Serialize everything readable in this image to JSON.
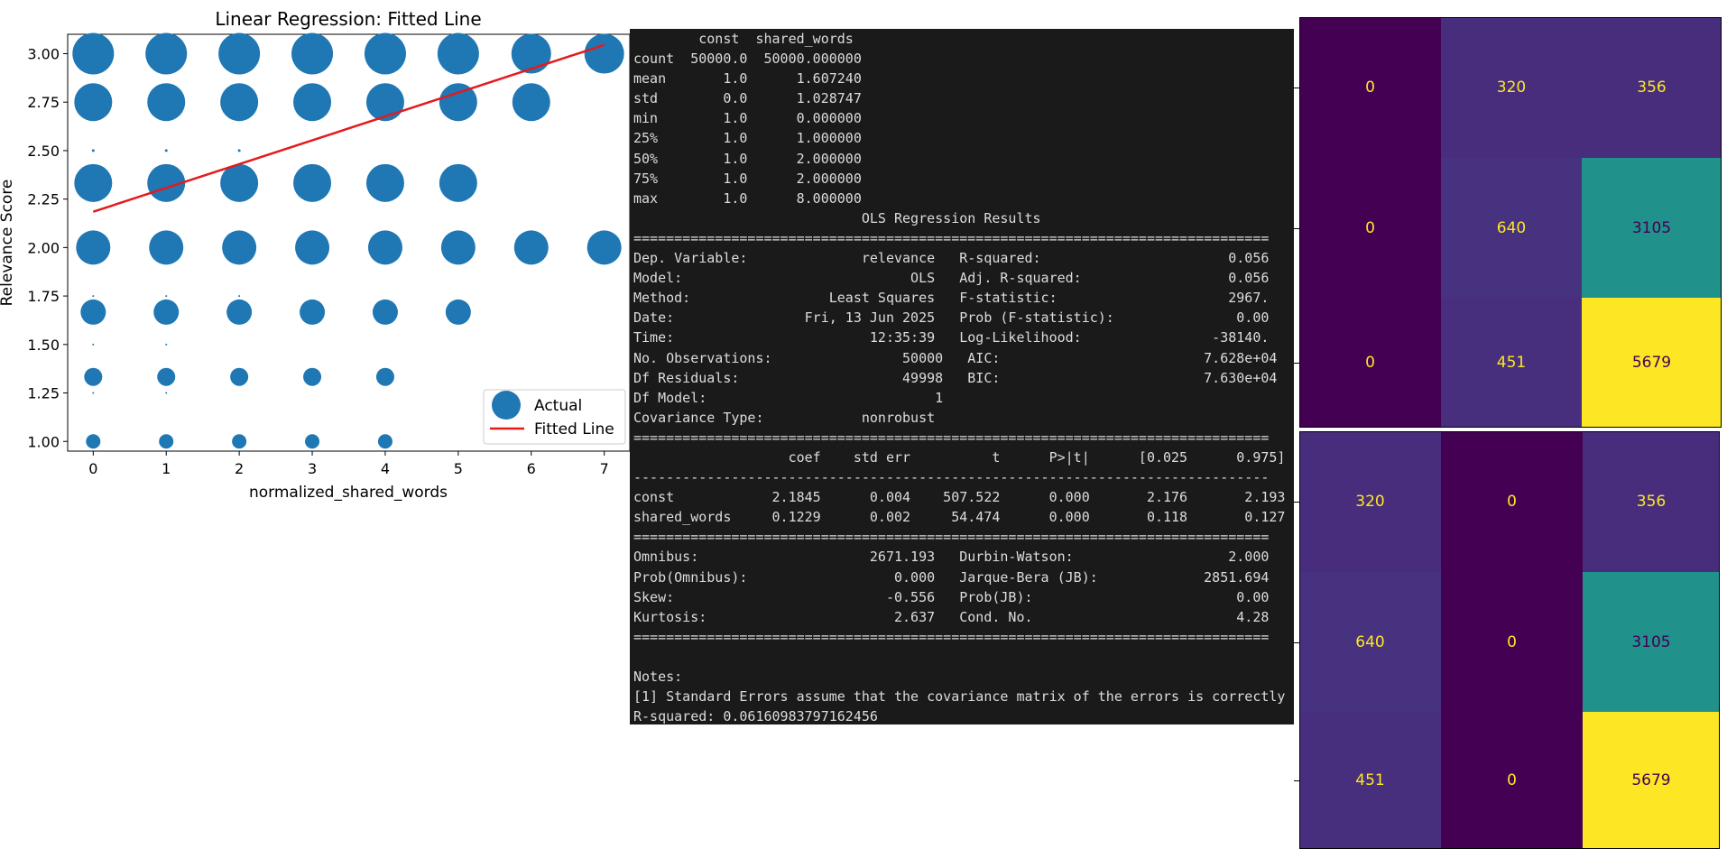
{
  "chart_data": {
    "type": "scatter",
    "title": "Linear Regression: Fitted Line",
    "xlabel": "normalized_shared_words",
    "ylabel": "Relevance Score",
    "xlim": [
      -0.35,
      7.35
    ],
    "ylim": [
      0.95,
      3.1
    ],
    "x_ticks": [
      "0",
      "1",
      "2",
      "3",
      "4",
      "5",
      "6",
      "7"
    ],
    "y_ticks": [
      "1.00",
      "1.25",
      "1.50",
      "1.75",
      "2.00",
      "2.25",
      "2.50",
      "2.75",
      "3.00"
    ],
    "legend": {
      "position": "lower-right",
      "entries": [
        "Actual",
        "Fitted Line"
      ]
    },
    "colors": {
      "actual": "#1f77b4",
      "fitted": "#e41a1c"
    },
    "series": [
      {
        "name": "Actual",
        "points": [
          {
            "x": 0,
            "y": 3.0,
            "r": 23
          },
          {
            "x": 1,
            "y": 3.0,
            "r": 23
          },
          {
            "x": 2,
            "y": 3.0,
            "r": 23
          },
          {
            "x": 3,
            "y": 3.0,
            "r": 23
          },
          {
            "x": 4,
            "y": 3.0,
            "r": 23
          },
          {
            "x": 5,
            "y": 3.0,
            "r": 23
          },
          {
            "x": 6,
            "y": 3.0,
            "r": 22
          },
          {
            "x": 7,
            "y": 3.0,
            "r": 22
          },
          {
            "x": 0,
            "y": 2.75,
            "r": 21
          },
          {
            "x": 1,
            "y": 2.75,
            "r": 21
          },
          {
            "x": 2,
            "y": 2.75,
            "r": 21
          },
          {
            "x": 3,
            "y": 2.75,
            "r": 21
          },
          {
            "x": 4,
            "y": 2.75,
            "r": 21
          },
          {
            "x": 5,
            "y": 2.75,
            "r": 21
          },
          {
            "x": 6,
            "y": 2.75,
            "r": 21
          },
          {
            "x": 0,
            "y": 2.5,
            "r": 1.5
          },
          {
            "x": 1,
            "y": 2.5,
            "r": 1.5
          },
          {
            "x": 2,
            "y": 2.5,
            "r": 1.5
          },
          {
            "x": 0,
            "y": 2.333,
            "r": 21
          },
          {
            "x": 1,
            "y": 2.333,
            "r": 21
          },
          {
            "x": 2,
            "y": 2.333,
            "r": 21
          },
          {
            "x": 3,
            "y": 2.333,
            "r": 21
          },
          {
            "x": 4,
            "y": 2.333,
            "r": 21
          },
          {
            "x": 5,
            "y": 2.333,
            "r": 21
          },
          {
            "x": 0,
            "y": 2.0,
            "r": 19
          },
          {
            "x": 1,
            "y": 2.0,
            "r": 19
          },
          {
            "x": 2,
            "y": 2.0,
            "r": 19
          },
          {
            "x": 3,
            "y": 2.0,
            "r": 19
          },
          {
            "x": 4,
            "y": 2.0,
            "r": 19
          },
          {
            "x": 5,
            "y": 2.0,
            "r": 19
          },
          {
            "x": 6,
            "y": 2.0,
            "r": 19
          },
          {
            "x": 7,
            "y": 2.0,
            "r": 19
          },
          {
            "x": 0,
            "y": 1.75,
            "r": 1
          },
          {
            "x": 1,
            "y": 1.75,
            "r": 1
          },
          {
            "x": 2,
            "y": 1.75,
            "r": 1
          },
          {
            "x": 0,
            "y": 1.667,
            "r": 14
          },
          {
            "x": 1,
            "y": 1.667,
            "r": 14
          },
          {
            "x": 2,
            "y": 1.667,
            "r": 14
          },
          {
            "x": 3,
            "y": 1.667,
            "r": 14
          },
          {
            "x": 4,
            "y": 1.667,
            "r": 14
          },
          {
            "x": 5,
            "y": 1.667,
            "r": 14
          },
          {
            "x": 0,
            "y": 1.5,
            "r": 1
          },
          {
            "x": 1,
            "y": 1.5,
            "r": 1
          },
          {
            "x": 0,
            "y": 1.333,
            "r": 10
          },
          {
            "x": 1,
            "y": 1.333,
            "r": 10
          },
          {
            "x": 2,
            "y": 1.333,
            "r": 10
          },
          {
            "x": 3,
            "y": 1.333,
            "r": 10
          },
          {
            "x": 4,
            "y": 1.333,
            "r": 10
          },
          {
            "x": 0,
            "y": 1.25,
            "r": 1
          },
          {
            "x": 1,
            "y": 1.25,
            "r": 1
          },
          {
            "x": 0,
            "y": 1.0,
            "r": 8
          },
          {
            "x": 1,
            "y": 1.0,
            "r": 8
          },
          {
            "x": 2,
            "y": 1.0,
            "r": 8
          },
          {
            "x": 3,
            "y": 1.0,
            "r": 8
          },
          {
            "x": 4,
            "y": 1.0,
            "r": 8
          }
        ]
      },
      {
        "name": "Fitted Line",
        "line": [
          {
            "x": 0,
            "y": 2.1845
          },
          {
            "x": 7,
            "y": 3.0448
          }
        ]
      }
    ]
  },
  "terminal": {
    "lines": [
      "        const  shared_words",
      "count  50000.0  50000.000000",
      "mean       1.0      1.607240",
      "std        0.0      1.028747",
      "min        1.0      0.000000",
      "25%        1.0      1.000000",
      "50%        1.0      2.000000",
      "75%        1.0      2.000000",
      "max        1.0      8.000000",
      "                            OLS Regression Results                            ",
      "==============================================================================",
      "Dep. Variable:              relevance   R-squared:                       0.056",
      "Model:                            OLS   Adj. R-squared:                  0.056",
      "Method:                 Least Squares   F-statistic:                     2967.",
      "Date:                Fri, 13 Jun 2025   Prob (F-statistic):               0.00",
      "Time:                        12:35:39   Log-Likelihood:                -38140.",
      "No. Observations:                50000   AIC:                         7.628e+04",
      "Df Residuals:                    49998   BIC:                         7.630e+04",
      "Df Model:                            1                                         ",
      "Covariance Type:            nonrobust                                         ",
      "==============================================================================",
      "                   coef    std err          t      P>|t|      [0.025      0.975]",
      "------------------------------------------------------------------------------",
      "const            2.1845      0.004    507.522      0.000       2.176       2.193",
      "shared_words     0.1229      0.002     54.474      0.000       0.118       0.127",
      "==============================================================================",
      "Omnibus:                     2671.193   Durbin-Watson:                   2.000",
      "Prob(Omnibus):                  0.000   Jarque-Bera (JB):             2851.694",
      "Skew:                          -0.556   Prob(JB):                         0.00",
      "Kurtosis:                       2.637   Cond. No.                         4.28",
      "==============================================================================",
      "",
      "Notes:",
      "[1] Standard Errors assume that the covariance matrix of the errors is correctly",
      "R-squared: 0.06160983797162456"
    ]
  },
  "matrices": [
    {
      "cells": [
        [
          "0",
          "320",
          "356"
        ],
        [
          "0",
          "640",
          "3105"
        ],
        [
          "0",
          "451",
          "5679"
        ]
      ],
      "colors": [
        [
          "#440154",
          "#472d7b",
          "#472d7b"
        ],
        [
          "#440154",
          "#46327e",
          "#21918c"
        ],
        [
          "#440154",
          "#472f7d",
          "#fde725"
        ]
      ],
      "text_colors": [
        [
          "#fde725",
          "#fde725",
          "#fde725"
        ],
        [
          "#fde725",
          "#fde725",
          "#440154"
        ],
        [
          "#fde725",
          "#fde725",
          "#440154"
        ]
      ]
    },
    {
      "cells": [
        [
          "320",
          "0",
          "356"
        ],
        [
          "640",
          "0",
          "3105"
        ],
        [
          "451",
          "0",
          "5679"
        ]
      ],
      "colors": [
        [
          "#472d7b",
          "#440154",
          "#472d7b"
        ],
        [
          "#46327e",
          "#440154",
          "#21918c"
        ],
        [
          "#472f7d",
          "#440154",
          "#fde725"
        ]
      ],
      "text_colors": [
        [
          "#fde725",
          "#fde725",
          "#fde725"
        ],
        [
          "#fde725",
          "#fde725",
          "#440154"
        ],
        [
          "#fde725",
          "#fde725",
          "#440154"
        ]
      ]
    }
  ]
}
